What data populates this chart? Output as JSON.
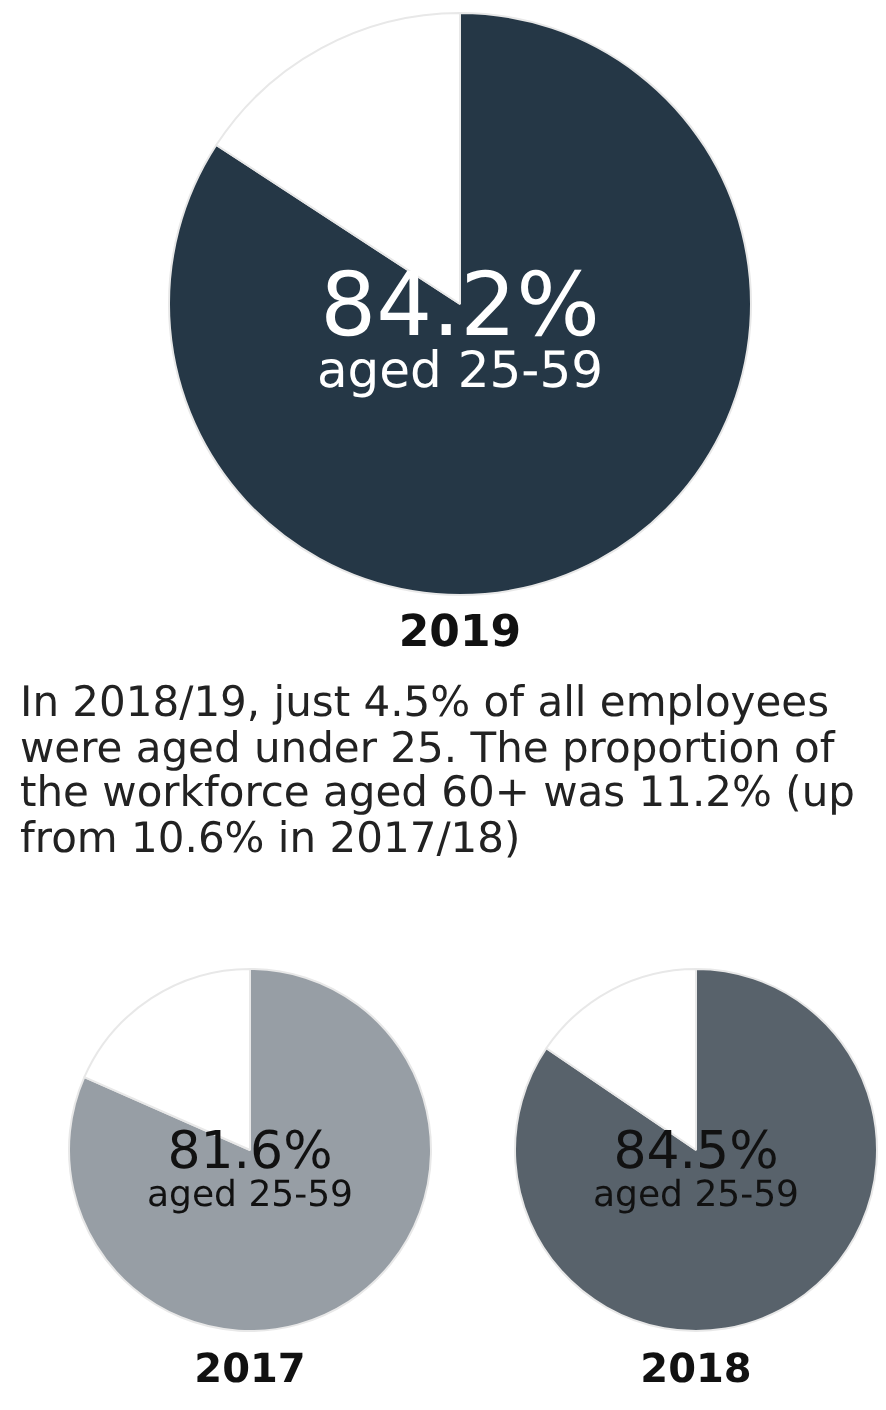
{
  "chart_data": [
    {
      "type": "pie",
      "title": "2019",
      "categories": [
        "aged 25-59",
        null
      ],
      "values": [
        84.2,
        15.8
      ],
      "colors": [
        "#253746",
        "#ffffff"
      ],
      "value_labels": [
        "84.2%",
        null
      ],
      "annotations": [
        "In 2018/19, just 4.5% of all employees were aged under 25. The proportion of the workforce aged 60+ was 11.2% (up from 10.6% in 2017/18)"
      ]
    },
    {
      "type": "pie",
      "title": "2017",
      "categories": [
        "aged 25-59",
        null
      ],
      "values": [
        81.6,
        18.4
      ],
      "colors": [
        "#979ea5",
        "#ffffff"
      ],
      "value_labels": [
        "81.6%",
        null
      ]
    },
    {
      "type": "pie",
      "title": "2018",
      "categories": [
        "aged 25-59",
        null
      ],
      "values": [
        84.5,
        15.5
      ],
      "colors": [
        "#58626b",
        "#ffffff"
      ],
      "value_labels": [
        "84.5%",
        null
      ]
    }
  ]
}
